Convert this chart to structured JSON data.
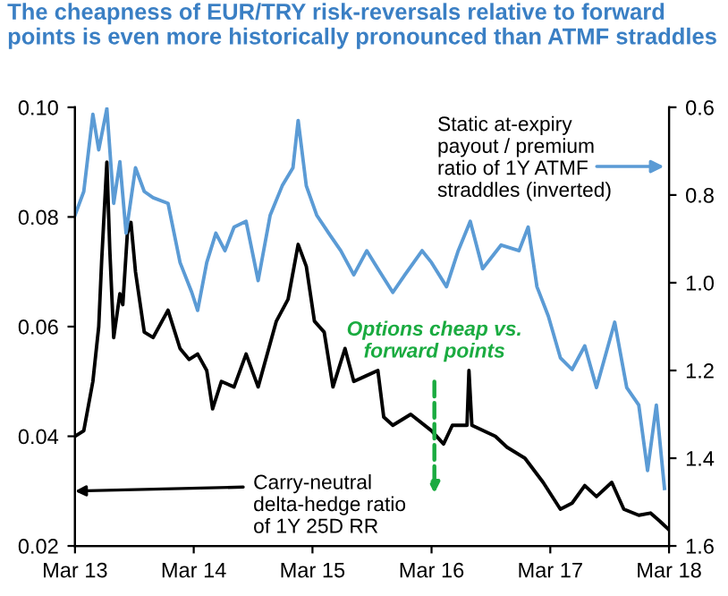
{
  "chart_data": {
    "type": "line",
    "title": "The cheapness of EUR/TRY risk-reversals relative to forward points is even more historically pronounced than ATMF straddles",
    "ylim": [
      0.02,
      0.1
    ],
    "yticks": [
      {
        "value": 0.02,
        "label": "0.02"
      },
      {
        "value": 0.04,
        "label": "0.04"
      },
      {
        "value": 0.06,
        "label": "0.06"
      },
      {
        "value": 0.08,
        "label": "0.08"
      },
      {
        "value": 0.1,
        "label": "0.10"
      }
    ],
    "y2lim": [
      1.6,
      0.6
    ],
    "y2ticks": [
      0.6,
      0.8,
      {
        "value": 1.0,
        "label": "1.0"
      },
      1.2,
      1.4,
      1.6
    ],
    "xlim": [
      "2013-03-01",
      "2018-03-01"
    ],
    "xticks": [
      {
        "value": "2013-03-01",
        "label": "Mar 13"
      },
      {
        "value": "2014-03-01",
        "label": "Mar 14"
      },
      {
        "value": "2015-03-01",
        "label": "Mar 15"
      },
      {
        "value": "2016-03-01",
        "label": "Mar 16"
      },
      {
        "value": "2017-03-01",
        "label": "Mar 17"
      },
      {
        "value": "2018-03-01",
        "label": "Mar 18"
      }
    ],
    "grid": false,
    "legend": false,
    "series": [
      {
        "color": "#000000",
        "x": [
          "2013-03-01",
          "2013-03-28",
          "2013-04-25",
          "2013-05-13",
          "2013-05-22",
          "2013-06-07",
          "2013-06-16",
          "2013-06-28",
          "2013-07-17",
          "2013-07-26",
          "2013-08-09",
          "2013-08-20",
          "2013-09-03",
          "2013-09-30",
          "2013-10-27",
          "2013-12-12",
          "2014-01-18",
          "2014-02-15",
          "2014-03-13",
          "2014-04-10",
          "2014-04-28",
          "2014-05-25",
          "2014-07-03",
          "2014-08-09",
          "2014-09-15",
          "2014-11-10",
          "2014-12-16",
          "2015-01-16",
          "2015-02-10",
          "2015-03-07",
          "2015-04-06",
          "2015-05-03",
          "2015-06-09",
          "2015-07-06",
          "2015-08-12",
          "2015-09-18",
          "2015-10-06",
          "2015-11-03",
          "2015-12-28",
          "2016-03-01",
          "2016-04-07",
          "2016-05-04",
          "2016-06-18",
          "2016-06-24",
          "2016-07-03",
          "2016-09-13",
          "2016-10-19",
          "2016-12-13",
          "2017-02-07",
          "2017-04-01",
          "2017-05-07",
          "2017-06-15",
          "2017-07-21",
          "2017-09-06",
          "2017-10-13",
          "2017-11-28",
          "2018-01-03",
          "2018-02-01",
          "2018-02-28"
        ],
        "values": [
          0.04,
          0.041,
          0.05,
          0.06,
          0.072,
          0.09,
          0.074,
          0.058,
          0.066,
          0.064,
          0.077,
          0.079,
          0.07,
          0.059,
          0.058,
          0.063,
          0.056,
          0.054,
          0.055,
          0.052,
          0.045,
          0.05,
          0.049,
          0.055,
          0.049,
          0.061,
          0.065,
          0.075,
          0.071,
          0.061,
          0.059,
          0.049,
          0.056,
          0.05,
          0.051,
          0.052,
          0.0435,
          0.042,
          0.044,
          0.041,
          0.0386,
          0.042,
          0.042,
          0.052,
          0.042,
          0.04,
          0.038,
          0.036,
          0.0316,
          0.0267,
          0.0278,
          0.031,
          0.029,
          0.0316,
          0.0267,
          0.0256,
          0.026,
          0.0245,
          0.023
        ]
      },
      {
        "color": "#5b9bd5",
        "axis": "y2",
        "x": [
          "2013-03-01",
          "2013-03-28",
          "2013-04-25",
          "2013-05-13",
          "2013-06-07",
          "2013-06-28",
          "2013-07-17",
          "2013-08-05",
          "2013-09-03",
          "2013-09-30",
          "2013-10-27",
          "2013-12-12",
          "2014-01-18",
          "2014-02-23",
          "2014-03-13",
          "2014-04-10",
          "2014-05-08",
          "2014-06-05",
          "2014-07-03",
          "2014-08-09",
          "2014-09-15",
          "2014-10-22",
          "2014-11-28",
          "2014-12-31",
          "2015-01-16",
          "2015-02-10",
          "2015-03-14",
          "2015-04-20",
          "2015-05-27",
          "2015-07-06",
          "2015-08-15",
          "2015-09-18",
          "2015-11-03",
          "2015-12-10",
          "2016-02-01",
          "2016-03-01",
          "2016-04-16",
          "2016-05-22",
          "2016-06-28",
          "2016-08-05",
          "2016-10-01",
          "2016-11-25",
          "2016-12-23",
          "2017-01-19",
          "2017-02-23",
          "2017-04-01",
          "2017-05-07",
          "2017-06-15",
          "2017-07-21",
          "2017-09-15",
          "2017-10-22",
          "2017-11-28",
          "2017-12-25",
          "2018-01-21",
          "2018-02-15"
        ],
        "values": [
          0.846,
          0.792,
          0.616,
          0.697,
          0.603,
          0.819,
          0.724,
          0.887,
          0.738,
          0.792,
          0.806,
          0.819,
          0.954,
          1.022,
          1.063,
          0.954,
          0.887,
          0.927,
          0.873,
          0.86,
          0.995,
          0.846,
          0.779,
          0.738,
          0.63,
          0.779,
          0.846,
          0.887,
          0.927,
          0.982,
          0.927,
          0.968,
          1.022,
          0.982,
          0.927,
          0.954,
          1.009,
          0.927,
          0.86,
          0.968,
          0.914,
          0.927,
          0.873,
          1.009,
          1.076,
          1.171,
          1.198,
          1.144,
          1.239,
          1.09,
          1.239,
          1.279,
          1.428,
          1.279,
          1.469
        ]
      }
    ],
    "annotations": [
      "Carry-neutral\ndelta-hedge ratio\nof 1Y 25D RR",
      "Static at-expiry\npayout / premium\nratio of 1Y ATMF\nstraddles (inverted)",
      "Options cheap vs.\nforward points"
    ]
  }
}
